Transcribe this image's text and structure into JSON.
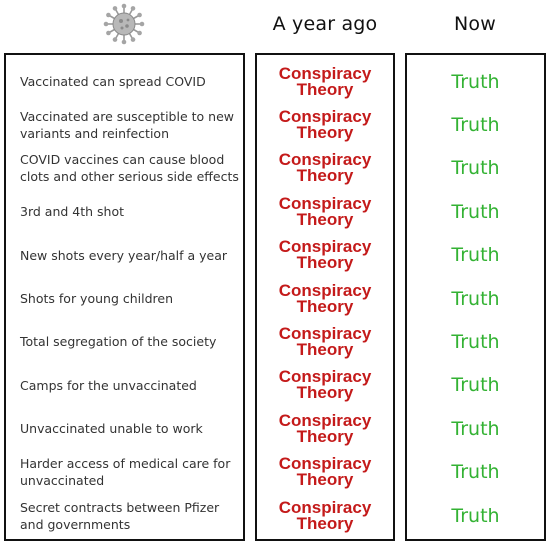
{
  "header": {
    "icon": "virus-icon",
    "col_ago": "A year ago",
    "col_now": "Now"
  },
  "colors": {
    "conspiracy": "#c41a1a",
    "truth": "#33b233",
    "claim_text": "#333333",
    "border": "#111111"
  },
  "rows": [
    {
      "claim": "Vaccinated can spread COVID",
      "ago": "Conspiracy Theory",
      "now": "Truth"
    },
    {
      "claim": "Vaccinated are susceptible to new variants and reinfection",
      "ago": "Conspiracy Theory",
      "now": "Truth"
    },
    {
      "claim": "COVID vaccines can cause blood clots and other serious side effects",
      "ago": "Conspiracy Theory",
      "now": "Truth"
    },
    {
      "claim": "3rd and 4th shot",
      "ago": "Conspiracy Theory",
      "now": "Truth"
    },
    {
      "claim": "New shots every year/half a year",
      "ago": "Conspiracy Theory",
      "now": "Truth"
    },
    {
      "claim": "Shots for young children",
      "ago": "Conspiracy Theory",
      "now": "Truth"
    },
    {
      "claim": "Total segregation of the society",
      "ago": "Conspiracy Theory",
      "now": "Truth"
    },
    {
      "claim": "Camps for the unvaccinated",
      "ago": "Conspiracy Theory",
      "now": "Truth"
    },
    {
      "claim": "Unvaccinated unable to work",
      "ago": "Conspiracy Theory",
      "now": "Truth"
    },
    {
      "claim": "Harder access of medical care for unvaccinated",
      "ago": "Conspiracy Theory",
      "now": "Truth"
    },
    {
      "claim": "Secret contracts between Pfizer and governments",
      "ago": "Conspiracy Theory",
      "now": "Truth"
    }
  ]
}
